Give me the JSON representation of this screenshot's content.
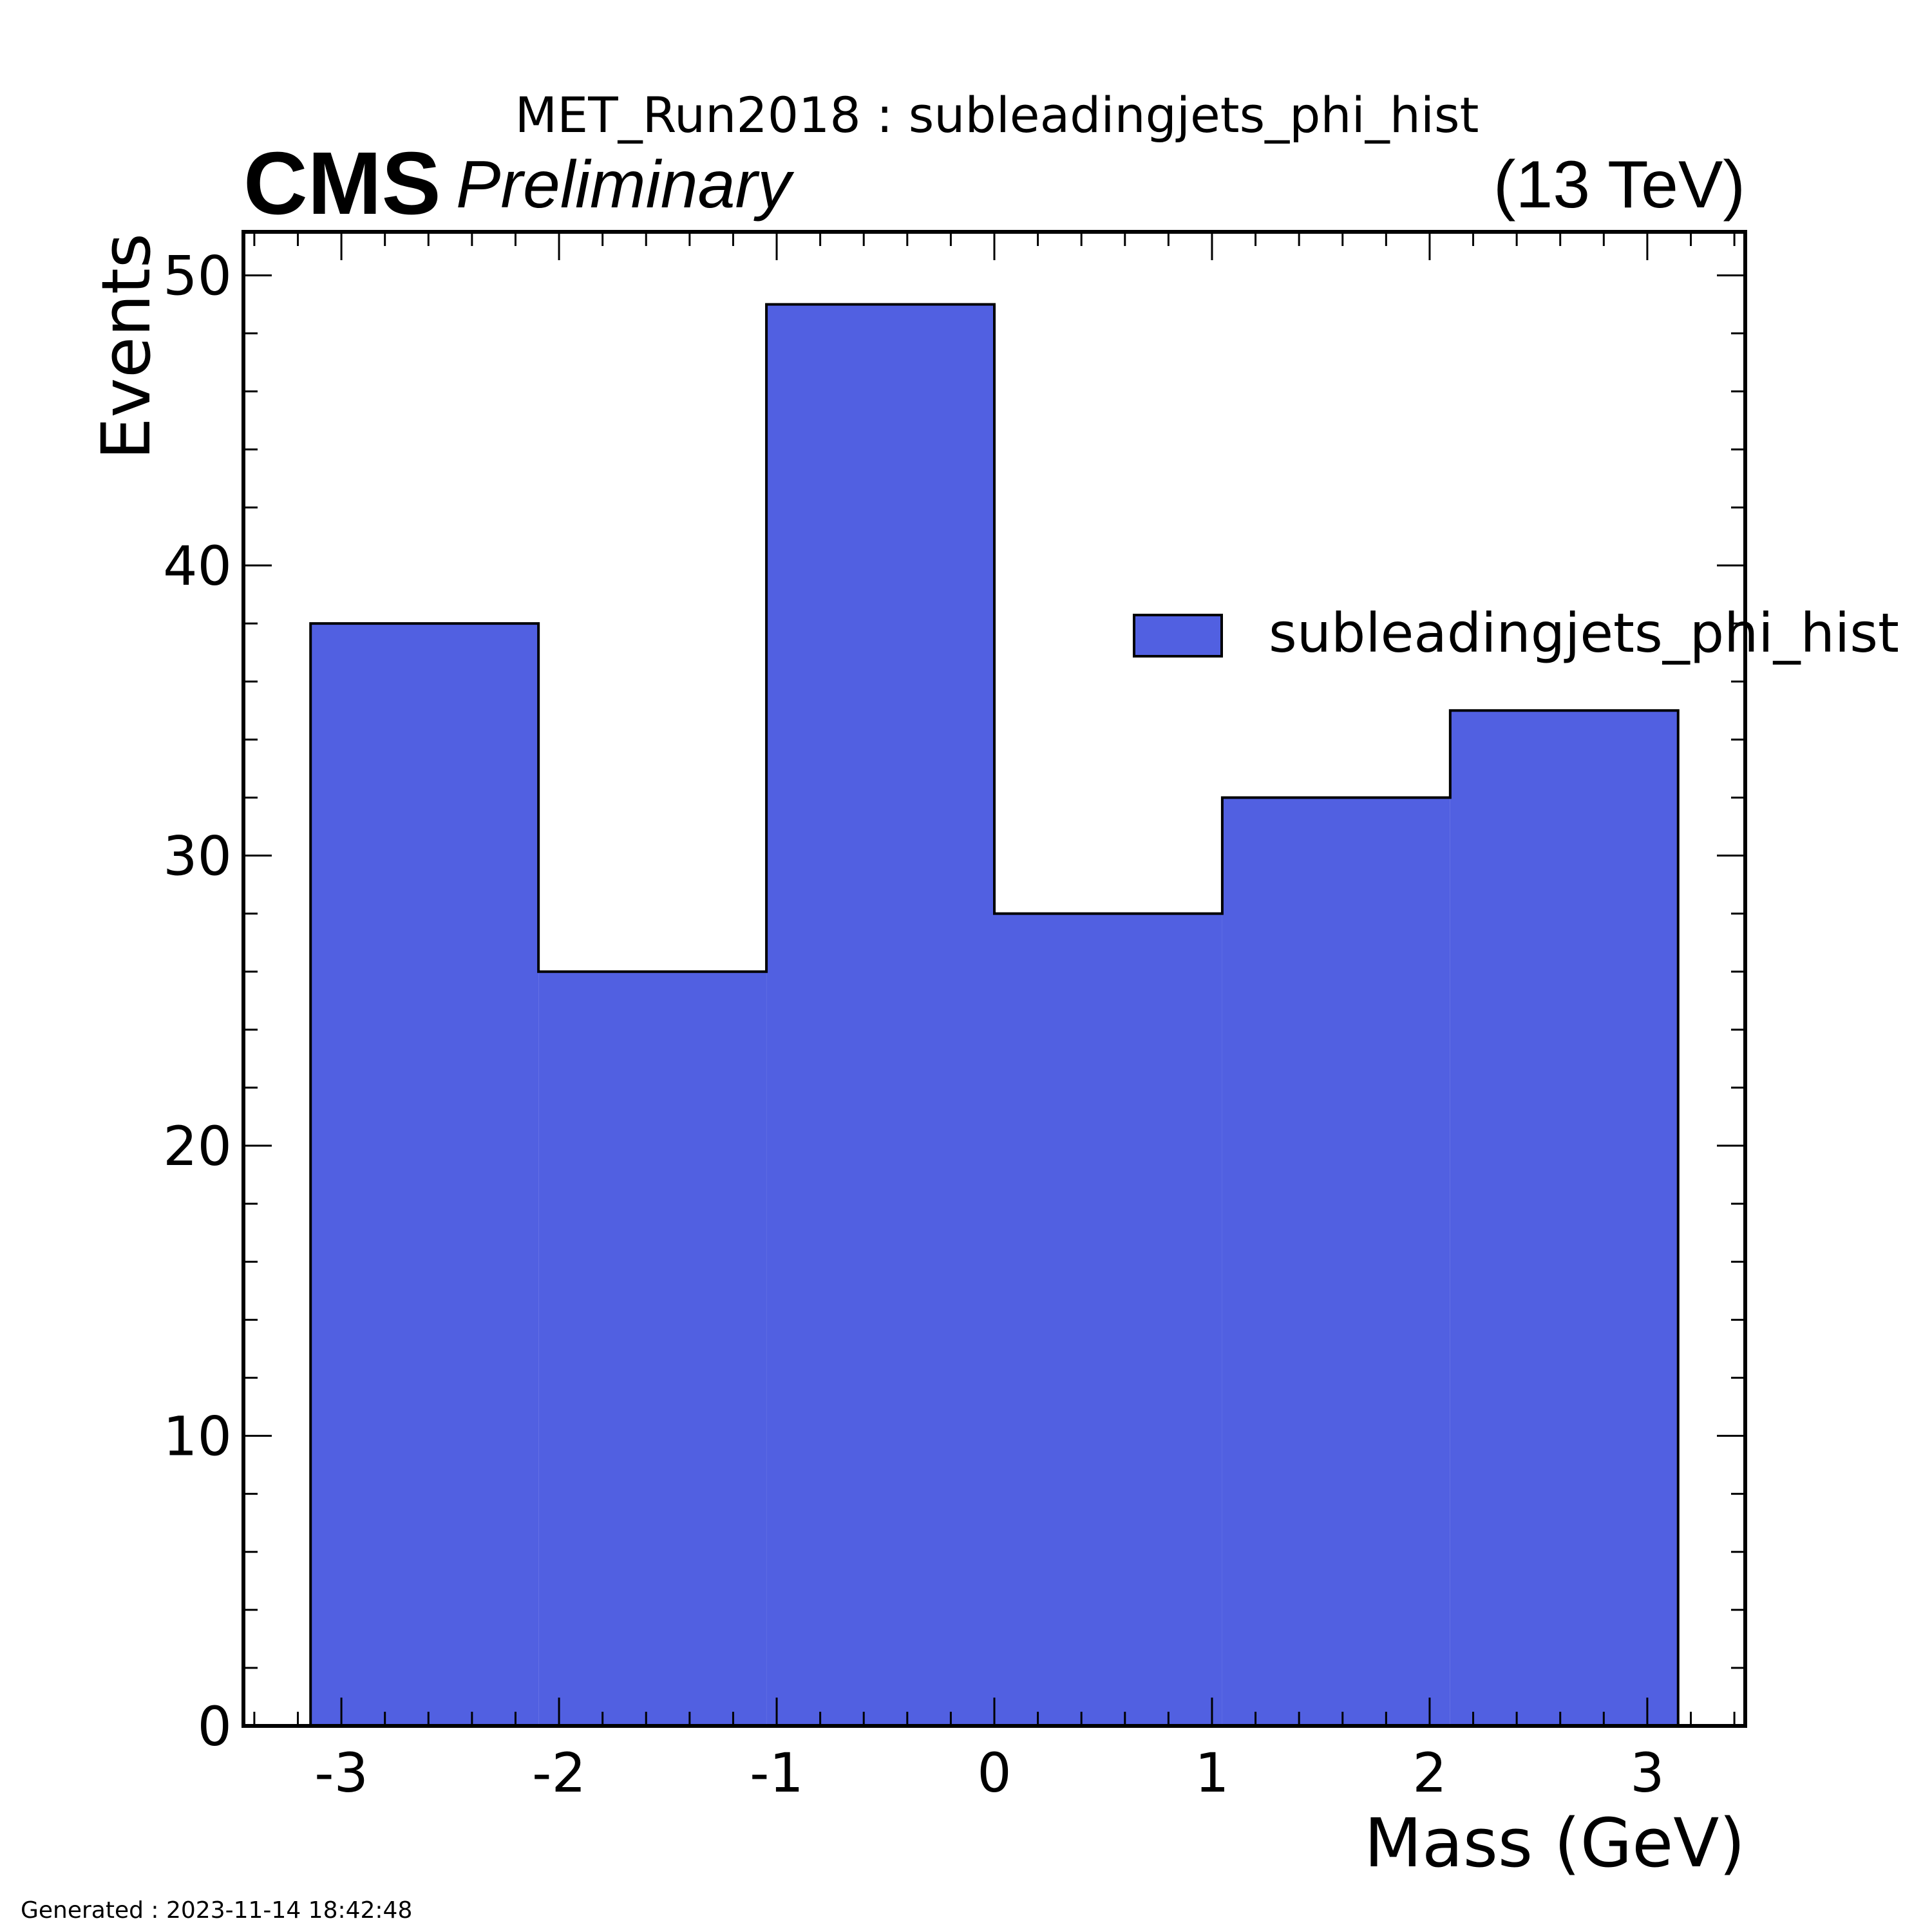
{
  "chart_data": {
    "type": "bar",
    "title": "MET_Run2018 : subleadingjets_phi_hist",
    "experiment": "CMS",
    "status": "Preliminary",
    "energy": "(13 TeV)",
    "xlabel": "Mass (GeV)",
    "ylabel": "Events",
    "xlim": [
      -3.45,
      3.45
    ],
    "ylim": [
      0,
      51.5
    ],
    "x_ticks": [
      -3,
      -2,
      -1,
      0,
      1,
      2,
      3
    ],
    "y_ticks": [
      0,
      10,
      20,
      30,
      40,
      50
    ],
    "bin_edges": [
      -3.1416,
      -2.0944,
      -1.0472,
      0.0,
      1.0472,
      2.0944,
      3.1416
    ],
    "series": [
      {
        "name": "subleadingjets_phi_hist",
        "values": [
          38,
          26,
          49,
          28,
          32,
          35
        ],
        "color": "#5160e1"
      }
    ],
    "legend_position": "upper-right",
    "grid": false
  },
  "footer": {
    "generated": "Generated : 2023-11-14 18:42:48"
  },
  "colors": {
    "fill": "#5160e1",
    "edge": "#000000"
  }
}
